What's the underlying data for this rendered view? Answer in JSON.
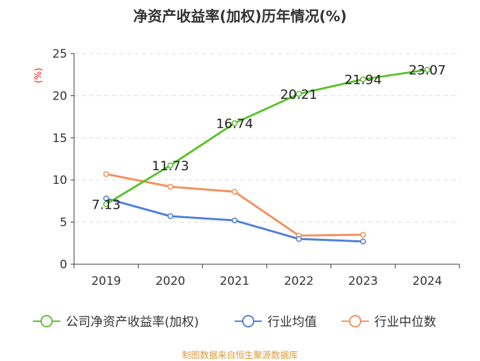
{
  "source": "制图数据来自恒生聚源数据库",
  "chart_data": {
    "type": "line",
    "title": "净资产收益率(加权)历年情况(%)",
    "ylabel": "(%)",
    "xlabel": "",
    "ylim": [
      0,
      25
    ],
    "yticks": [
      0,
      5,
      10,
      15,
      20,
      25
    ],
    "categories": [
      "2019",
      "2020",
      "2021",
      "2022",
      "2023",
      "2024"
    ],
    "grid": true,
    "legend_position": "bottom",
    "series": [
      {
        "name": "公司净资产收益率(加权)",
        "color": "#5cc12c",
        "values": [
          7.13,
          11.73,
          16.74,
          20.21,
          21.94,
          23.07
        ],
        "labels": [
          "7.13",
          "11.73",
          "16.74",
          "20.21",
          "21.94",
          "23.07"
        ]
      },
      {
        "name": "行业均值",
        "color": "#4f7fd9",
        "values": [
          7.8,
          5.7,
          5.2,
          3.0,
          2.7,
          null
        ]
      },
      {
        "name": "行业中位数",
        "color": "#f4905c",
        "values": [
          10.7,
          9.2,
          8.6,
          3.4,
          3.5,
          null
        ]
      }
    ]
  }
}
